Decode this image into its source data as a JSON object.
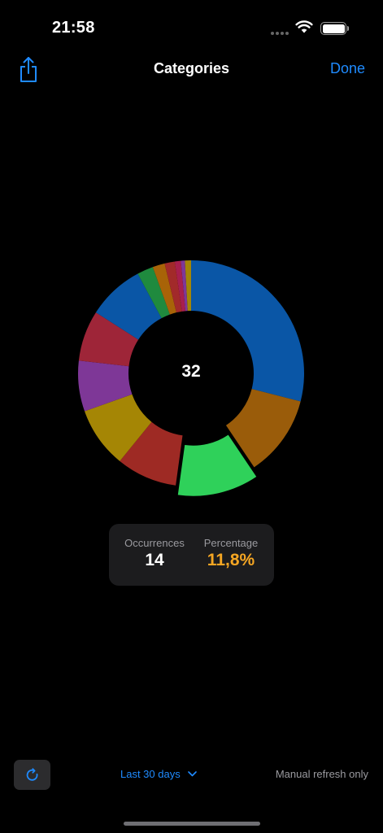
{
  "status_bar": {
    "time": "21:58"
  },
  "nav": {
    "title": "Categories",
    "done_label": "Done"
  },
  "colors": {
    "accent": "#1f8bff",
    "highlight": "#f5a623",
    "background": "#000000"
  },
  "chart_data": {
    "type": "pie",
    "style": "donut",
    "center_label": "32",
    "segments": [
      {
        "value": 10,
        "color": "#0a56a6"
      },
      {
        "value": 4,
        "color": "#9a5c0a"
      },
      {
        "value": 4,
        "color": "#2fd15a",
        "selected": true
      },
      {
        "value": 3,
        "color": "#9e2a24"
      },
      {
        "value": 3,
        "color": "#a58605"
      },
      {
        "value": 2.5,
        "color": "#7e3797"
      },
      {
        "value": 2.5,
        "color": "#9e2538"
      },
      {
        "value": 2.8,
        "color": "#0a56a6"
      },
      {
        "value": 0.8,
        "color": "#1f8a3e"
      },
      {
        "value": 0.6,
        "color": "#a86308"
      },
      {
        "value": 0.5,
        "color": "#a22a2a"
      },
      {
        "value": 0.3,
        "color": "#a81f4e"
      },
      {
        "value": 0.2,
        "color": "#7e3797"
      },
      {
        "value": 0.3,
        "color": "#a58605"
      }
    ]
  },
  "selection": {
    "occurrences_label": "Occurrences",
    "occurrences_value": "14",
    "percentage_label": "Percentage",
    "percentage_value": "11,8%"
  },
  "toolbar": {
    "range_label": "Last 30 days",
    "refresh_note": "Manual refresh only"
  },
  "icons": {
    "share": "share-icon",
    "refresh": "refresh-icon",
    "chevron": "chevron-down-icon",
    "wifi": "wifi-icon",
    "battery": "battery-icon"
  }
}
